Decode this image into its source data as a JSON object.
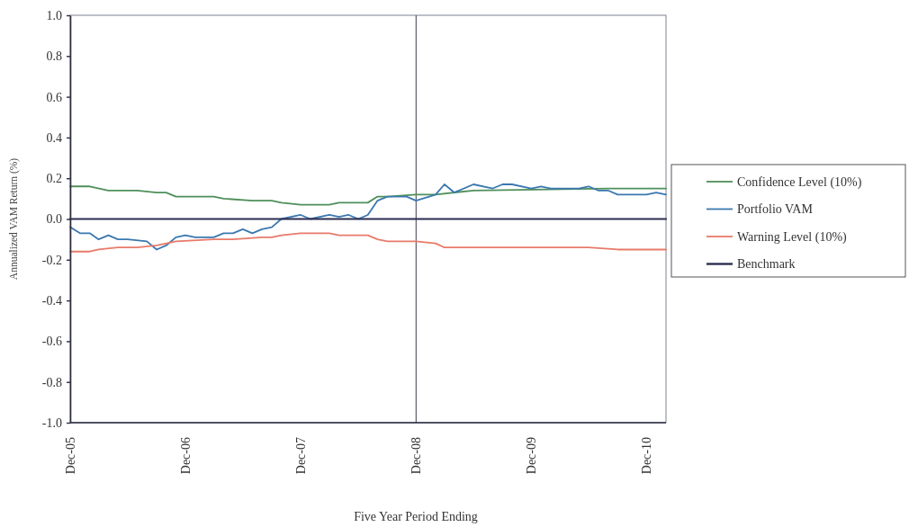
{
  "chart_data": {
    "type": "line",
    "xlabel": "Five Year Period Ending",
    "ylabel": "Annualized VAM Return (%)",
    "xlim": [
      "2005-12",
      "2011-02"
    ],
    "ylim": [
      -1.0,
      1.0
    ],
    "xticks": [
      {
        "value": "2005-12",
        "label": "Dec-05"
      },
      {
        "value": "2006-12",
        "label": "Dec-06"
      },
      {
        "value": "2007-12",
        "label": "Dec-07"
      },
      {
        "value": "2008-12",
        "label": "Dec-08"
      },
      {
        "value": "2009-12",
        "label": "Dec-09"
      },
      {
        "value": "2010-12",
        "label": "Dec-10"
      }
    ],
    "yticks": [
      {
        "value": -1,
        "label": "-1.0"
      },
      {
        "value": -0.8,
        "label": "-0.8"
      },
      {
        "value": -0.6,
        "label": "-0.6"
      },
      {
        "value": -0.4,
        "label": "-0.4"
      },
      {
        "value": -0.2,
        "label": "-0.2"
      },
      {
        "value": 0,
        "label": "0.0"
      },
      {
        "value": 0.2,
        "label": "0.2"
      },
      {
        "value": 0.4,
        "label": "0.4"
      },
      {
        "value": 0.6,
        "label": "0.6"
      },
      {
        "value": 0.8,
        "label": "0.8"
      },
      {
        "value": 1,
        "label": "1.0"
      }
    ],
    "grid": false,
    "legend": "right",
    "marker": "none",
    "line_style": "solid",
    "ref_lines": [
      {
        "axis": "x",
        "value": "2008-12",
        "color": "#3a3d4a"
      }
    ],
    "series": [
      {
        "name": "Confidence Level (10%)",
        "color": "#4f8f5a",
        "x": [
          "2005-12",
          "2006-02",
          "2006-04",
          "2006-07",
          "2006-09",
          "2006-10",
          "2006-11",
          "2007-03",
          "2007-04",
          "2007-07",
          "2007-09",
          "2007-10",
          "2007-12",
          "2008-03",
          "2008-04",
          "2008-07",
          "2008-08",
          "2008-09",
          "2008-12",
          "2009-02",
          "2009-06",
          "2010-08",
          "2011-02"
        ],
        "values": [
          0.16,
          0.16,
          0.14,
          0.14,
          0.13,
          0.13,
          0.11,
          0.11,
          0.1,
          0.09,
          0.09,
          0.08,
          0.07,
          0.07,
          0.08,
          0.08,
          0.11,
          0.11,
          0.12,
          0.12,
          0.14,
          0.15,
          0.15
        ]
      },
      {
        "name": "Portfolio VAM",
        "color": "#3a78b0",
        "x": [
          "2005-12",
          "2006-01",
          "2006-02",
          "2006-03",
          "2006-04",
          "2006-05",
          "2006-06",
          "2006-08",
          "2006-09",
          "2006-10",
          "2006-11",
          "2006-12",
          "2007-01",
          "2007-03",
          "2007-04",
          "2007-05",
          "2007-06",
          "2007-07",
          "2007-08",
          "2007-09",
          "2007-10",
          "2007-12",
          "2008-01",
          "2008-03",
          "2008-04",
          "2008-05",
          "2008-06",
          "2008-07",
          "2008-08",
          "2008-09",
          "2008-11",
          "2008-12",
          "2009-02",
          "2009-03",
          "2009-04",
          "2009-06",
          "2009-08",
          "2009-09",
          "2009-10",
          "2009-12",
          "2010-01",
          "2010-02",
          "2010-05",
          "2010-06",
          "2010-07",
          "2010-08",
          "2010-09",
          "2010-10",
          "2010-12",
          "2011-01",
          "2011-02"
        ],
        "values": [
          -0.04,
          -0.07,
          -0.07,
          -0.1,
          -0.08,
          -0.1,
          -0.1,
          -0.11,
          -0.15,
          -0.13,
          -0.09,
          -0.08,
          -0.09,
          -0.09,
          -0.07,
          -0.07,
          -0.05,
          -0.07,
          -0.05,
          -0.04,
          0.0,
          0.02,
          0.0,
          0.02,
          0.01,
          0.02,
          0.0,
          0.02,
          0.09,
          0.11,
          0.11,
          0.09,
          0.12,
          0.17,
          0.13,
          0.17,
          0.15,
          0.17,
          0.17,
          0.15,
          0.16,
          0.15,
          0.15,
          0.16,
          0.14,
          0.14,
          0.12,
          0.12,
          0.12,
          0.13,
          0.12
        ]
      },
      {
        "name": "Warning Level (10%)",
        "color": "#e87a6a",
        "x": [
          "2005-12",
          "2006-02",
          "2006-03",
          "2006-05",
          "2006-07",
          "2006-09",
          "2006-11",
          "2007-03",
          "2007-05",
          "2007-08",
          "2007-09",
          "2007-10",
          "2007-12",
          "2008-03",
          "2008-04",
          "2008-07",
          "2008-08",
          "2008-09",
          "2008-12",
          "2009-02",
          "2009-03",
          "2009-07",
          "2010-06",
          "2010-09",
          "2011-02"
        ],
        "values": [
          -0.16,
          -0.16,
          -0.15,
          -0.14,
          -0.14,
          -0.13,
          -0.11,
          -0.1,
          -0.1,
          -0.09,
          -0.09,
          -0.08,
          -0.07,
          -0.07,
          -0.08,
          -0.08,
          -0.1,
          -0.11,
          -0.11,
          -0.12,
          -0.14,
          -0.14,
          -0.14,
          -0.15,
          -0.15
        ]
      },
      {
        "name": "Benchmark",
        "color": "#2b2d50",
        "x": [
          "2005-12",
          "2011-02"
        ],
        "values": [
          0,
          0
        ]
      }
    ]
  }
}
